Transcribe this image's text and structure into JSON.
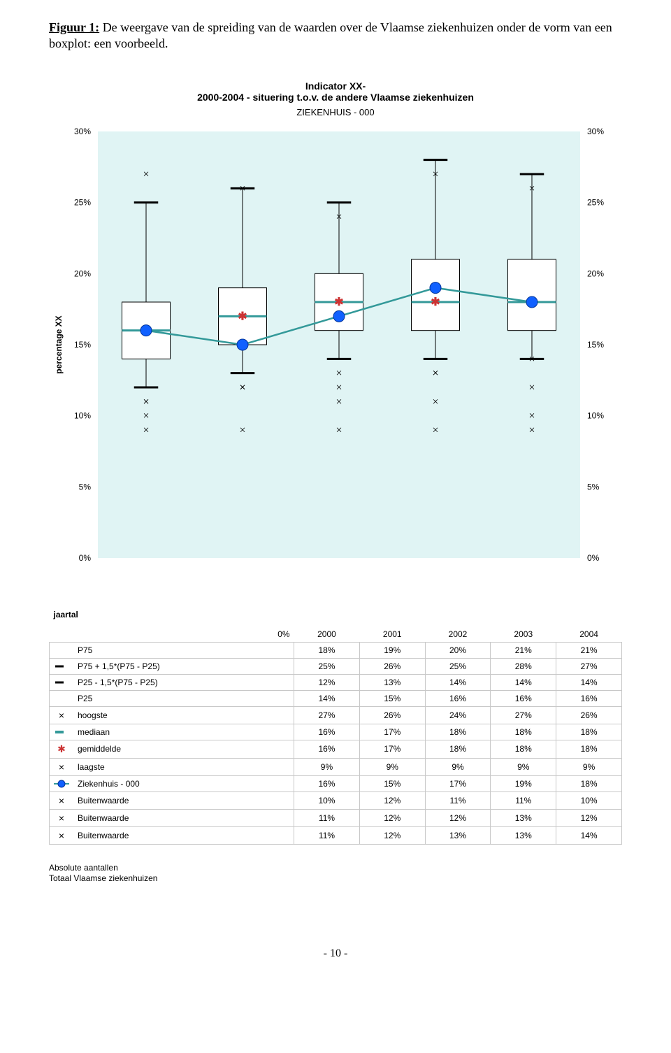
{
  "figure_caption_lead": "Figuur 1:",
  "figure_caption_rest": " De weergave van de spreiding van de waarden over de Vlaamse ziekenhuizen onder de vorm van een boxplot: een voorbeeld.",
  "chart_title_line1": "Indicator XX-",
  "chart_title_line2": "2000-2004 - situering t.o.v. de andere Vlaamse ziekenhuizen",
  "chart_subtitle": "ZIEKENHUIS - 000",
  "y_axis_label": "percentage XX",
  "x_axis_label": "jaartal",
  "page_number": "- 10 -",
  "absolute_note_line1": "Absolute aantallen",
  "absolute_note_line2": "Totaal Vlaamse ziekenhuizen",
  "chart": {
    "type": "boxplot",
    "years": [
      "2000",
      "2001",
      "2002",
      "2003",
      "2004"
    ],
    "ylim": [
      0,
      30
    ],
    "ytick_step": 5,
    "plot_background": "#e0f4f4",
    "gridline_color": "#ffffff",
    "box_fill": "#ffffff",
    "box_stroke": "#000000",
    "whisker_color": "#000000",
    "median_color": "#339999",
    "mean_color": "#cc3333",
    "own_hospital_color": "#1060ff",
    "own_line_color": "#339999",
    "outlier_color": "#000000",
    "box_width": 0.5,
    "series": {
      "P75": [
        18,
        19,
        20,
        21,
        21
      ],
      "P75_plus": [
        25,
        26,
        25,
        28,
        27
      ],
      "P25_minus": [
        12,
        13,
        14,
        14,
        14
      ],
      "P25": [
        14,
        15,
        16,
        16,
        16
      ],
      "hoogste": [
        27,
        26,
        24,
        27,
        26
      ],
      "mediaan": [
        16,
        17,
        18,
        18,
        18
      ],
      "gemiddelde": [
        16,
        17,
        18,
        18,
        18
      ],
      "laagste": [
        9,
        9,
        9,
        9,
        9
      ],
      "Ziekenhuis000": [
        16,
        15,
        17,
        19,
        18
      ],
      "Buitenwaarde1": [
        10,
        12,
        11,
        11,
        10
      ],
      "Buitenwaarde2": [
        11,
        12,
        12,
        13,
        12
      ],
      "Buitenwaarde3": [
        11,
        12,
        13,
        13,
        14
      ]
    }
  },
  "table": {
    "headers": [
      "",
      "",
      "2000",
      "2001",
      "2002",
      "2003",
      "2004"
    ],
    "rows": [
      {
        "icon": "",
        "label": "P75",
        "vals": [
          "18%",
          "19%",
          "20%",
          "21%",
          "21%"
        ]
      },
      {
        "icon": "dash",
        "label": "P75 + 1,5*(P75 - P25)",
        "vals": [
          "25%",
          "26%",
          "25%",
          "28%",
          "27%"
        ]
      },
      {
        "icon": "dash",
        "label": "P25  - 1,5*(P75 - P25)",
        "vals": [
          "12%",
          "13%",
          "14%",
          "14%",
          "14%"
        ]
      },
      {
        "icon": "",
        "label": "P25",
        "vals": [
          "14%",
          "15%",
          "16%",
          "16%",
          "16%"
        ]
      },
      {
        "icon": "cross",
        "label": "hoogste",
        "vals": [
          "27%",
          "26%",
          "24%",
          "27%",
          "26%"
        ]
      },
      {
        "icon": "bar-teal",
        "label": "mediaan",
        "vals": [
          "16%",
          "17%",
          "18%",
          "18%",
          "18%"
        ]
      },
      {
        "icon": "star-red",
        "label": "gemiddelde",
        "vals": [
          "16%",
          "17%",
          "18%",
          "18%",
          "18%"
        ]
      },
      {
        "icon": "cross",
        "label": "laagste",
        "vals": [
          "9%",
          "9%",
          "9%",
          "9%",
          "9%"
        ]
      },
      {
        "icon": "dot-blue",
        "label": "Ziekenhuis - 000",
        "vals": [
          "16%",
          "15%",
          "17%",
          "19%",
          "18%"
        ]
      },
      {
        "icon": "cross",
        "label": "Buitenwaarde",
        "vals": [
          "10%",
          "12%",
          "11%",
          "11%",
          "10%"
        ]
      },
      {
        "icon": "cross",
        "label": "Buitenwaarde",
        "vals": [
          "11%",
          "12%",
          "12%",
          "13%",
          "12%"
        ]
      },
      {
        "icon": "cross",
        "label": "Buitenwaarde",
        "vals": [
          "11%",
          "12%",
          "13%",
          "13%",
          "14%"
        ]
      }
    ],
    "trailing_col_labels": [
      "0%",
      "0%"
    ]
  }
}
